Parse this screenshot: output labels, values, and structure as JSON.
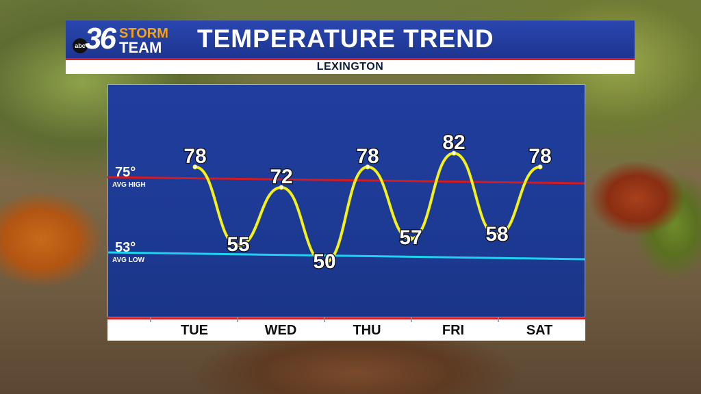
{
  "header": {
    "logo_number": "36",
    "logo_line1": "STORM",
    "logo_line2": "TEAM",
    "logo_badge": "abc",
    "title": "TEMPERATURE TREND",
    "location": "LEXINGTON"
  },
  "chart_data": {
    "type": "line",
    "title": "TEMPERATURE TREND",
    "subtitle": "LEXINGTON",
    "x_labels": [
      "TUE",
      "WED",
      "THU",
      "FRI",
      "SAT"
    ],
    "points": [
      {
        "day": "TUE",
        "period": "high",
        "value": 78
      },
      {
        "day": "TUE",
        "period": "low",
        "value": 55
      },
      {
        "day": "WED",
        "period": "high",
        "value": 72
      },
      {
        "day": "WED",
        "period": "low",
        "value": 50
      },
      {
        "day": "THU",
        "period": "high",
        "value": 78
      },
      {
        "day": "THU",
        "period": "low",
        "value": 57
      },
      {
        "day": "FRI",
        "period": "high",
        "value": 82
      },
      {
        "day": "FRI",
        "period": "low",
        "value": 58
      },
      {
        "day": "SAT",
        "period": "high",
        "value": 78
      }
    ],
    "reference_lines": [
      {
        "value": 75,
        "label": "75°",
        "sublabel": "AVG HIGH",
        "color": "#d11c24"
      },
      {
        "value": 53,
        "label": "53°",
        "sublabel": "AVG LOW",
        "color": "#1fd3f0"
      }
    ],
    "line_color": "#f4f01a",
    "ylim": [
      40,
      90
    ],
    "grid": false
  }
}
